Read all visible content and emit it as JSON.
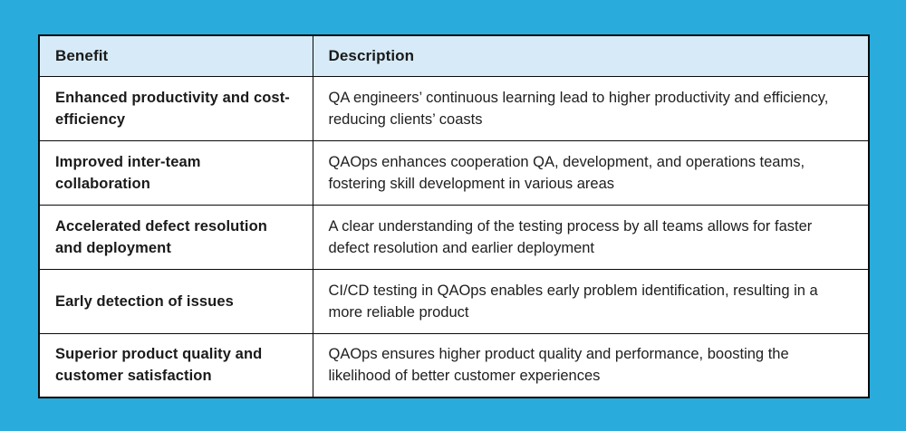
{
  "colors": {
    "page_background": "#29ABDB",
    "header_background": "#D6EBF7",
    "cell_background": "#FFFFFF",
    "border": "#0A0A0A",
    "text": "#1A1A1A"
  },
  "table": {
    "headers": {
      "benefit": "Benefit",
      "description": "Description"
    },
    "rows": [
      {
        "benefit": "Enhanced productivity and cost-efficiency",
        "description": "QA engineers’ continuous learning lead to higher productivity and efficiency, reducing clients’ coasts"
      },
      {
        "benefit": "Improved inter-team collaboration",
        "description": "QAOps enhances cooperation QA, development, and operations teams, fostering skill development in various areas"
      },
      {
        "benefit": "Accelerated defect resolution and deployment",
        "description": "A clear understanding of the testing process by all teams allows for faster defect resolution and earlier deployment"
      },
      {
        "benefit": "Early detection of issues",
        "description": "CI/CD testing in QAOps enables early problem identification, resulting in a more reliable product"
      },
      {
        "benefit": "Superior product quality and customer satisfaction",
        "description": "QAOps ensures higher product quality and performance, boosting the likelihood of better customer experiences"
      }
    ]
  }
}
